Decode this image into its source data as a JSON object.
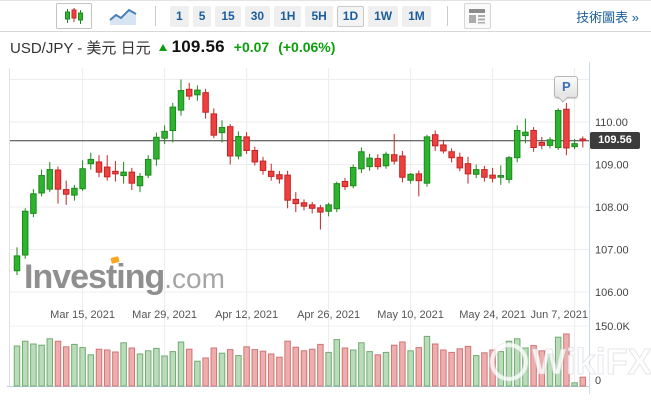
{
  "toolbar": {
    "chart_types": [
      {
        "name": "candlestick",
        "selected": true
      },
      {
        "name": "line",
        "selected": false
      }
    ],
    "timeframes": [
      "1",
      "5",
      "15",
      "30",
      "1H",
      "5H",
      "1D",
      "1W",
      "1M"
    ],
    "selected_timeframe": "1D",
    "technical_chart_link": "技術圖表 »"
  },
  "header": {
    "symbol_title": "USD/JPY - 美元 日元",
    "last_price": "109.56",
    "change": "+0.07",
    "change_percent": "(+0.06%)",
    "direction": "up"
  },
  "watermarks": {
    "brand": "Investing",
    "brand_suffix": ".com",
    "bottom_right": "WikiFX"
  },
  "colors": {
    "up": "#2eb32e",
    "up_border": "#1d891d",
    "down": "#ef4040",
    "down_border": "#c32424",
    "vol_up": "#b9ddb9",
    "vol_up_border": "#74aa74",
    "vol_down": "#eeaeae",
    "vol_down_border": "#cf7575",
    "grid": "#ededed",
    "axis_text": "#444444",
    "date_text": "#555555",
    "price_line": "#3a3a3a",
    "tag_bg": "#3c3c3c",
    "plot_border_left": "#e0e0e0",
    "plot_border_right": "#c9d9e8",
    "baseline_blue": "#b9cfe2",
    "accent_green": "#0c9e0c",
    "link_blue": "#1b5e9e"
  },
  "chart_data": {
    "type": "candlestick",
    "title": "USD/JPY daily candles with volume",
    "timeframe": "1D",
    "last_price": 109.56,
    "last_price_label": "109.56",
    "price_line": 109.56,
    "marker": {
      "label": "P",
      "candle_index": 67
    },
    "x_ticks": [
      {
        "label": "Mar 15, 2021",
        "candle_index": 8
      },
      {
        "label": "Mar 29, 2021",
        "candle_index": 18
      },
      {
        "label": "Apr 12, 2021",
        "candle_index": 28
      },
      {
        "label": "Apr 26, 2021",
        "candle_index": 38
      },
      {
        "label": "May 10, 2021",
        "candle_index": 48
      },
      {
        "label": "May 24, 2021",
        "candle_index": 58
      },
      {
        "label": "Jun 7, 2021",
        "candle_index": 68
      }
    ],
    "y_ticks": [
      {
        "label": "110.00",
        "price": 110.0
      },
      {
        "label": "109.00",
        "price": 109.0
      },
      {
        "label": "108.00",
        "price": 108.0
      },
      {
        "label": "107.00",
        "price": 107.0
      },
      {
        "label": "106.00",
        "price": 106.0
      }
    ],
    "y_grid_prices": [
      111.0,
      110.0,
      109.0,
      108.0,
      107.0,
      106.0
    ],
    "volume_ticks": [
      {
        "label": "150.0K",
        "value": 150
      },
      {
        "label": "0",
        "value": 0
      }
    ],
    "volume_unit": "K",
    "ylim": [
      105.6,
      111.3
    ],
    "legend_position": "none",
    "grid": true,
    "candles_format": [
      "open",
      "high",
      "low",
      "close",
      "volume_K"
    ],
    "candles": [
      [
        106.5,
        107.05,
        106.4,
        106.85,
        100
      ],
      [
        106.87,
        107.97,
        106.78,
        107.9,
        112
      ],
      [
        107.85,
        108.42,
        107.76,
        108.31,
        105
      ],
      [
        108.33,
        108.88,
        108.25,
        108.74,
        102
      ],
      [
        108.42,
        109.06,
        108.35,
        108.88,
        118
      ],
      [
        108.87,
        108.95,
        108.08,
        108.42,
        112
      ],
      [
        108.41,
        108.62,
        108.05,
        108.3,
        98
      ],
      [
        108.28,
        108.52,
        108.15,
        108.44,
        104
      ],
      [
        108.43,
        109.1,
        108.38,
        108.9,
        96
      ],
      [
        109.02,
        109.28,
        108.88,
        109.12,
        78
      ],
      [
        109.06,
        109.22,
        108.7,
        108.82,
        92
      ],
      [
        108.94,
        109.22,
        108.62,
        108.71,
        90
      ],
      [
        108.84,
        109.08,
        108.6,
        108.78,
        85
      ],
      [
        108.74,
        109.06,
        108.55,
        108.82,
        108
      ],
      [
        108.82,
        108.92,
        108.4,
        108.56,
        95
      ],
      [
        108.5,
        108.8,
        108.35,
        108.72,
        80
      ],
      [
        108.75,
        109.22,
        108.68,
        109.12,
        88
      ],
      [
        109.13,
        109.75,
        108.97,
        109.64,
        94
      ],
      [
        109.62,
        109.92,
        109.48,
        109.78,
        75
      ],
      [
        109.8,
        110.45,
        109.52,
        110.35,
        86
      ],
      [
        110.28,
        111.0,
        110.15,
        110.74,
        110
      ],
      [
        110.77,
        110.92,
        110.52,
        110.61,
        92
      ],
      [
        110.64,
        110.86,
        110.5,
        110.75,
        62
      ],
      [
        110.69,
        110.78,
        110.08,
        110.23,
        70
      ],
      [
        110.19,
        110.32,
        109.62,
        109.69,
        95
      ],
      [
        109.75,
        110.04,
        109.52,
        109.87,
        82
      ],
      [
        109.89,
        109.95,
        109.0,
        109.2,
        91
      ],
      [
        109.2,
        109.78,
        109.12,
        109.66,
        76
      ],
      [
        109.65,
        109.76,
        109.25,
        109.33,
        98
      ],
      [
        109.33,
        109.42,
        108.98,
        109.06,
        91
      ],
      [
        109.08,
        109.18,
        108.76,
        108.86,
        87
      ],
      [
        108.84,
        109.02,
        108.62,
        108.72,
        80
      ],
      [
        108.76,
        108.85,
        108.55,
        108.66,
        72
      ],
      [
        108.75,
        108.85,
        107.97,
        108.16,
        112
      ],
      [
        108.18,
        108.35,
        107.88,
        108.08,
        97
      ],
      [
        108.1,
        108.18,
        107.92,
        108.02,
        88
      ],
      [
        108.05,
        108.12,
        107.85,
        107.97,
        92
      ],
      [
        107.98,
        108.05,
        107.47,
        107.88,
        104
      ],
      [
        107.9,
        108.1,
        107.78,
        108.05,
        84
      ],
      [
        107.96,
        108.6,
        107.88,
        108.55,
        116
      ],
      [
        108.6,
        108.68,
        108.4,
        108.48,
        95
      ],
      [
        108.5,
        109.0,
        108.44,
        108.93,
        90
      ],
      [
        108.9,
        109.4,
        108.8,
        109.3,
        108
      ],
      [
        108.95,
        109.25,
        108.85,
        109.15,
        86
      ],
      [
        109.14,
        109.24,
        108.88,
        108.95,
        78
      ],
      [
        108.97,
        109.3,
        108.9,
        109.24,
        84
      ],
      [
        109.23,
        109.72,
        109.0,
        109.08,
        102
      ],
      [
        109.2,
        109.32,
        108.58,
        108.7,
        110
      ],
      [
        108.63,
        108.8,
        108.55,
        108.77,
        88
      ],
      [
        108.78,
        108.86,
        108.25,
        108.62,
        96
      ],
      [
        108.56,
        109.7,
        108.48,
        109.65,
        124
      ],
      [
        109.7,
        109.8,
        109.32,
        109.44,
        105
      ],
      [
        109.46,
        109.58,
        109.26,
        109.32,
        90
      ],
      [
        109.3,
        109.38,
        109.05,
        109.16,
        84
      ],
      [
        109.17,
        109.28,
        108.84,
        108.92,
        93
      ],
      [
        109.02,
        109.18,
        108.55,
        108.78,
        99
      ],
      [
        108.77,
        109.0,
        108.68,
        108.88,
        76
      ],
      [
        108.88,
        108.97,
        108.6,
        108.7,
        83
      ],
      [
        108.75,
        108.92,
        108.58,
        108.68,
        90
      ],
      [
        108.7,
        108.98,
        108.52,
        108.74,
        86
      ],
      [
        108.65,
        109.2,
        108.56,
        109.16,
        112
      ],
      [
        109.16,
        109.92,
        109.05,
        109.8,
        118
      ],
      [
        109.68,
        110.08,
        109.5,
        109.76,
        95
      ],
      [
        109.8,
        109.88,
        109.3,
        109.4,
        101
      ],
      [
        109.52,
        109.65,
        109.36,
        109.45,
        88
      ],
      [
        109.45,
        109.64,
        109.38,
        109.58,
        80
      ],
      [
        109.4,
        110.32,
        109.34,
        110.27,
        122
      ],
      [
        110.3,
        110.45,
        109.22,
        109.39,
        130
      ],
      [
        109.42,
        109.6,
        109.36,
        109.49,
        8
      ],
      [
        109.6,
        109.66,
        109.4,
        109.56,
        22
      ]
    ]
  }
}
